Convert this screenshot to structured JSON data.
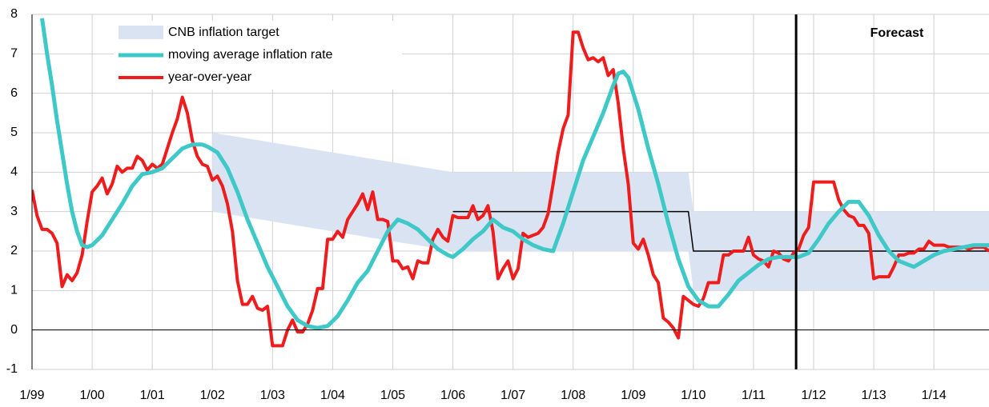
{
  "chart_data": {
    "type": "line",
    "ylim": [
      -1,
      8
    ],
    "yticks": [
      -1,
      0,
      1,
      2,
      3,
      4,
      5,
      6,
      7,
      8
    ],
    "xlim": [
      0,
      191
    ],
    "xticks": [
      {
        "value": 0,
        "label": "1/99"
      },
      {
        "value": 12,
        "label": "1/00"
      },
      {
        "value": 24,
        "label": "1/01"
      },
      {
        "value": 36,
        "label": "1/02"
      },
      {
        "value": 48,
        "label": "1/03"
      },
      {
        "value": 60,
        "label": "1/04"
      },
      {
        "value": 72,
        "label": "1/05"
      },
      {
        "value": 84,
        "label": "1/06"
      },
      {
        "value": 96,
        "label": "1/07"
      },
      {
        "value": 108,
        "label": "1/08"
      },
      {
        "value": 120,
        "label": "1/09"
      },
      {
        "value": 132,
        "label": "1/10"
      },
      {
        "value": 144,
        "label": "1/11"
      },
      {
        "value": 156,
        "label": "1/12"
      },
      {
        "value": 168,
        "label": "1/13"
      },
      {
        "value": 180,
        "label": "1/14"
      }
    ],
    "grid": true,
    "legend": "upper-left",
    "annotation": "Forecast",
    "forecast_x": 152.5,
    "band": {
      "name": "CNB inflation target",
      "color": "#dae3f1",
      "x": [
        36,
        84,
        131,
        132,
        191
      ],
      "upper": [
        5,
        4,
        4,
        3,
        3
      ],
      "lower": [
        3,
        2,
        2,
        1,
        1
      ]
    },
    "target_line": {
      "color": "#000000",
      "x": [
        84,
        131,
        132,
        191
      ],
      "values": [
        3,
        3,
        2,
        2
      ]
    },
    "series": [
      {
        "name": "moving average inflation rate",
        "color": "#3fc8c8",
        "x": [
          2,
          3,
          4,
          5,
          6,
          7,
          8,
          9,
          10,
          11,
          12,
          14,
          16,
          18,
          20,
          22,
          24,
          26,
          28,
          30,
          32,
          34,
          35,
          37,
          39,
          41,
          43,
          45,
          47,
          49,
          51,
          53,
          55,
          57,
          59,
          61,
          63,
          65,
          67,
          69,
          71,
          73,
          75,
          77,
          79,
          81,
          83,
          84,
          86,
          88,
          90,
          92,
          94,
          96,
          98,
          100,
          102,
          104,
          106,
          108,
          110,
          112,
          114,
          116,
          117,
          118,
          119,
          121,
          123,
          125,
          127,
          129,
          131,
          133,
          135,
          137,
          139,
          141,
          143,
          145,
          147,
          149,
          151,
          153,
          155,
          157,
          159,
          161,
          163,
          165,
          167,
          169,
          171,
          173,
          175,
          176,
          178,
          180,
          182,
          184,
          186,
          188,
          191
        ],
        "values": [
          7.9,
          7.0,
          6.2,
          5.3,
          4.5,
          3.7,
          3.0,
          2.5,
          2.15,
          2.1,
          2.15,
          2.4,
          2.8,
          3.2,
          3.65,
          3.95,
          4.0,
          4.1,
          4.35,
          4.6,
          4.7,
          4.7,
          4.65,
          4.5,
          4.1,
          3.5,
          2.8,
          2.2,
          1.6,
          1.1,
          0.6,
          0.25,
          0.1,
          0.05,
          0.1,
          0.35,
          0.75,
          1.2,
          1.5,
          2.0,
          2.5,
          2.8,
          2.7,
          2.55,
          2.3,
          2.05,
          1.9,
          1.85,
          2.05,
          2.3,
          2.5,
          2.8,
          2.6,
          2.5,
          2.3,
          2.15,
          2.05,
          2.0,
          2.7,
          3.5,
          4.3,
          4.9,
          5.5,
          6.2,
          6.5,
          6.55,
          6.4,
          5.6,
          4.6,
          3.7,
          2.7,
          1.8,
          1.1,
          0.75,
          0.6,
          0.6,
          0.9,
          1.25,
          1.45,
          1.65,
          1.8,
          1.85,
          1.85,
          1.85,
          1.95,
          2.3,
          2.7,
          3.0,
          3.25,
          3.25,
          2.9,
          2.4,
          2.0,
          1.75,
          1.65,
          1.6,
          1.75,
          1.9,
          2.0,
          2.05,
          2.1,
          2.15,
          2.15
        ]
      },
      {
        "name": "year-over-year",
        "color": "#ee1c1c",
        "x": [
          0,
          1,
          2,
          3,
          4,
          5,
          6,
          7,
          8,
          9,
          10,
          11,
          12,
          13,
          14,
          15,
          16,
          17,
          18,
          19,
          20,
          21,
          22,
          23,
          24,
          25,
          26,
          27,
          28,
          29,
          30,
          31,
          32,
          33,
          34,
          35,
          36,
          37,
          38,
          39,
          40,
          41,
          42,
          43,
          44,
          45,
          46,
          47,
          48,
          49,
          50,
          51,
          52,
          53,
          54,
          55,
          56,
          57,
          58,
          59,
          60,
          61,
          62,
          63,
          64,
          65,
          66,
          67,
          68,
          69,
          70,
          71,
          72,
          73,
          74,
          75,
          76,
          77,
          78,
          79,
          80,
          81,
          82,
          83,
          84,
          85,
          86,
          87,
          88,
          89,
          90,
          91,
          92,
          93,
          94,
          95,
          96,
          97,
          98,
          99,
          100,
          101,
          102,
          103,
          104,
          105,
          106,
          107,
          108,
          109,
          110,
          111,
          112,
          113,
          114,
          115,
          116,
          117,
          118,
          119,
          120,
          121,
          122,
          123,
          124,
          125,
          126,
          127,
          128,
          129,
          130,
          131,
          132,
          133,
          134,
          135,
          136,
          137,
          138,
          139,
          140,
          141,
          142,
          143,
          144,
          145,
          146,
          147,
          148,
          149,
          150,
          151,
          152,
          153,
          154,
          155,
          156,
          157,
          158,
          159,
          160,
          161,
          162,
          163,
          164,
          165,
          166,
          167,
          168,
          169,
          170,
          171,
          172,
          173,
          174,
          175,
          176,
          177,
          178,
          179,
          180,
          181,
          182,
          183,
          184,
          185,
          186,
          187,
          188,
          189,
          190,
          191
        ],
        "values": [
          3.55,
          2.9,
          2.55,
          2.55,
          2.45,
          2.2,
          1.1,
          1.4,
          1.25,
          1.45,
          1.9,
          2.75,
          3.5,
          3.65,
          3.85,
          3.45,
          3.7,
          4.15,
          4.0,
          4.1,
          4.1,
          4.4,
          4.3,
          4.05,
          4.2,
          4.1,
          4.2,
          4.6,
          5.0,
          5.35,
          5.9,
          5.5,
          4.8,
          4.4,
          4.2,
          4.15,
          3.8,
          3.9,
          3.65,
          3.2,
          2.5,
          1.25,
          0.65,
          0.65,
          0.85,
          0.55,
          0.5,
          0.6,
          -0.4,
          -0.4,
          -0.4,
          0,
          0.25,
          -0.05,
          -0.05,
          0.15,
          0.5,
          1.05,
          1.05,
          2.3,
          2.3,
          2.5,
          2.35,
          2.8,
          3.0,
          3.2,
          3.45,
          3.05,
          3.5,
          2.8,
          2.8,
          2.75,
          1.75,
          1.75,
          1.55,
          1.6,
          1.3,
          1.75,
          1.7,
          1.7,
          2.3,
          2.55,
          2.35,
          2.25,
          2.9,
          2.85,
          2.85,
          2.85,
          3.15,
          2.8,
          2.9,
          3.15,
          2.5,
          1.3,
          1.55,
          1.75,
          1.3,
          1.55,
          2.45,
          2.35,
          2.4,
          2.45,
          2.6,
          2.95,
          3.7,
          4.5,
          5.1,
          5.45,
          7.55,
          7.55,
          7.15,
          6.85,
          6.9,
          6.8,
          6.9,
          6.45,
          6.6,
          5.75,
          4.6,
          3.7,
          2.2,
          2.05,
          2.3,
          1.9,
          1.4,
          1.2,
          0.3,
          0.2,
          0.05,
          -0.2,
          0.85,
          0.75,
          0.65,
          0.6,
          0.8,
          1.2,
          1.2,
          1.2,
          1.9,
          1.9,
          2.0,
          2.0,
          2.0,
          2.35,
          1.9,
          1.8,
          1.75,
          1.6,
          2.0,
          1.95,
          1.8,
          1.75,
          1.95,
          2.05,
          2.4,
          2.6,
          3.75,
          3.75,
          3.75,
          3.75,
          3.75,
          3.3,
          3.05,
          2.9,
          2.85,
          2.65,
          2.65,
          2.45,
          1.3,
          1.35,
          1.35,
          1.35,
          1.6,
          1.9,
          1.9,
          1.95,
          1.95,
          2.05,
          2.05,
          2.25,
          2.15,
          2.15,
          2.15,
          2.1,
          2.1,
          2.1,
          2.1,
          2.05,
          2.1,
          2.1,
          2.1,
          2.0
        ]
      }
    ]
  }
}
